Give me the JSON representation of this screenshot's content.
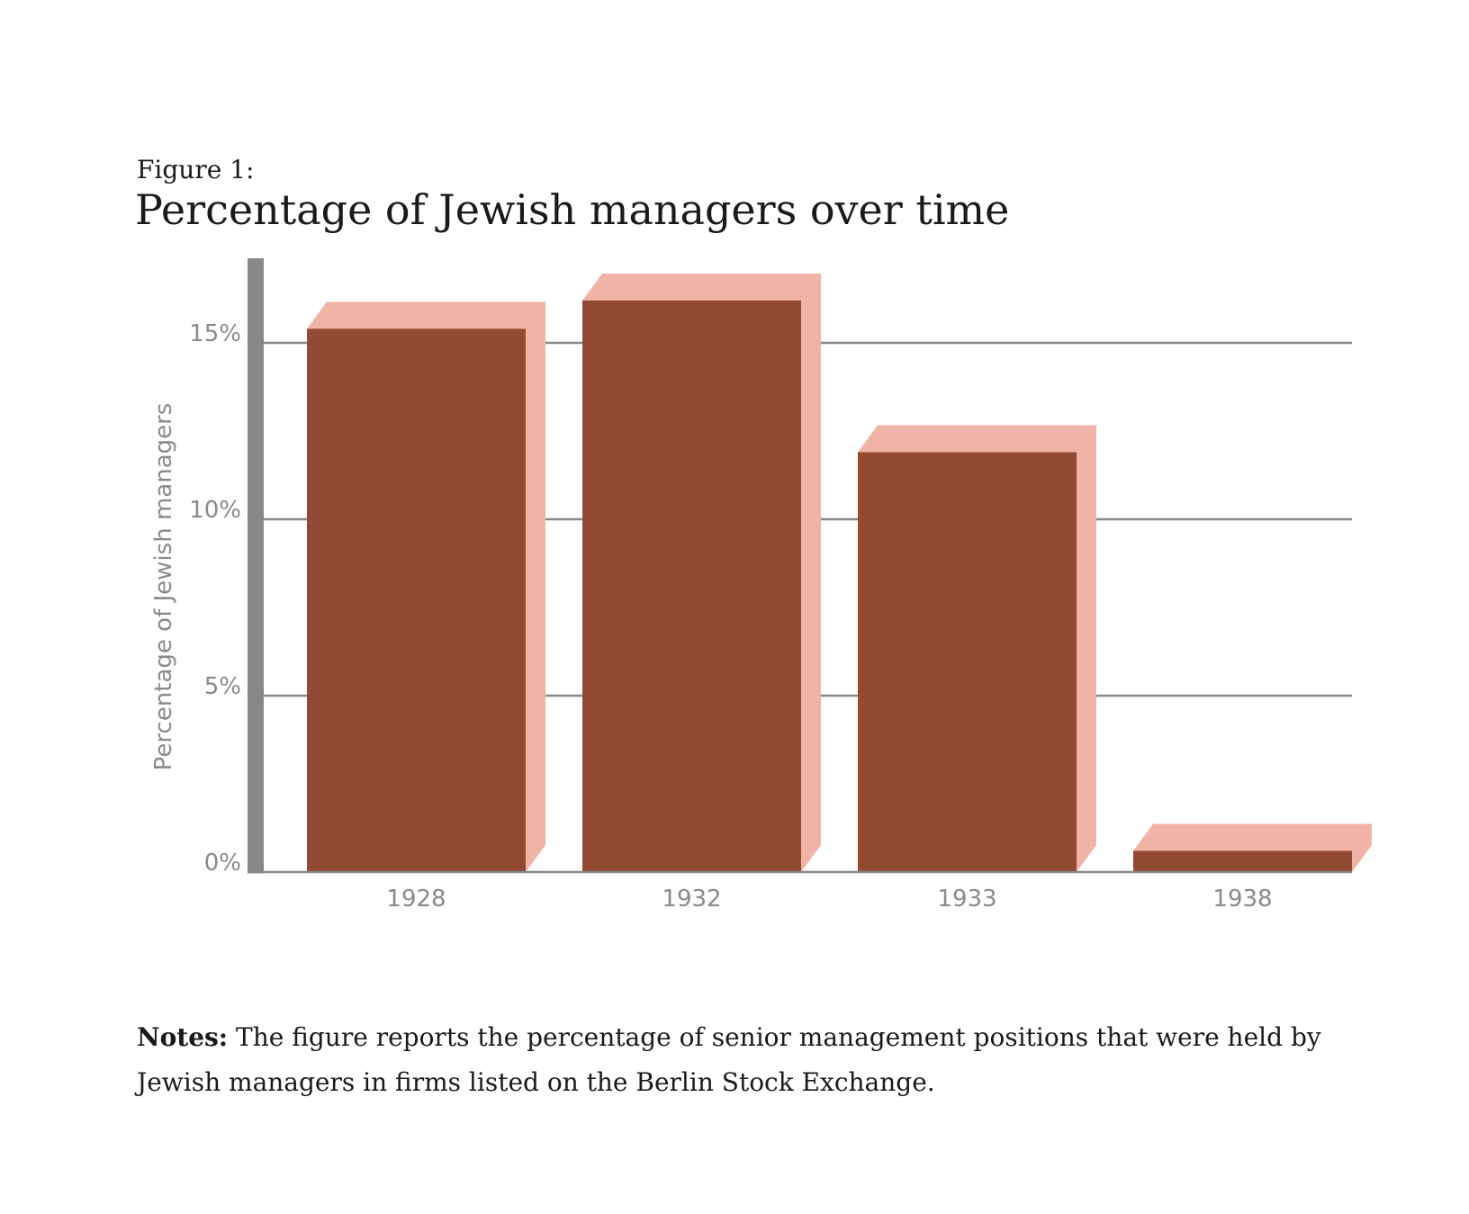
{
  "figure": {
    "label": "Figure 1:",
    "title": "Percentage of Jewish managers over time"
  },
  "notes": {
    "label": "Notes:",
    "text": " The figure reports the percentage of senior management positions that were held by Jewish managers in firms listed on the Berlin Stock Exchange."
  },
  "colors": {
    "bar_front": "#934A33",
    "bar_side": "#F0B3A6",
    "axis": "#888888",
    "grid": "#888888",
    "tick_text": "#8a8a8a"
  },
  "chart_data": {
    "type": "bar",
    "title": "Percentage of Jewish managers over time",
    "xlabel": "",
    "ylabel": "Percentage of Jewish managers",
    "categories": [
      "1928",
      "1932",
      "1933",
      "1938"
    ],
    "values": [
      15.4,
      16.2,
      11.9,
      0.6
    ],
    "ylim": [
      0,
      17.5
    ],
    "yticks": [
      0,
      5,
      10,
      15
    ],
    "ytick_labels": [
      "0%",
      "5%",
      "10%",
      "15%"
    ],
    "grid": true,
    "legend": "none",
    "style": "3d-extruded bars"
  }
}
